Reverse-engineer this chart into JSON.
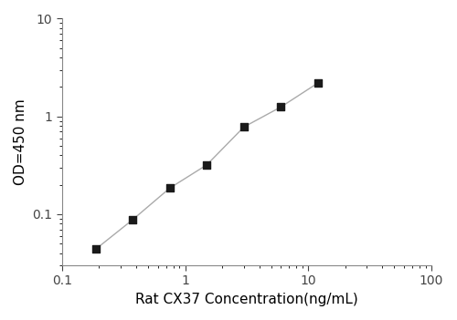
{
  "x": [
    0.188,
    0.375,
    0.75,
    1.5,
    3.0,
    6.0,
    12.0
  ],
  "y": [
    0.044,
    0.088,
    0.185,
    0.32,
    0.78,
    1.25,
    2.2
  ],
  "xlim": [
    0.1,
    100
  ],
  "ylim": [
    0.03,
    10
  ],
  "xlabel": "Rat CX37 Concentration(ng/mL)",
  "ylabel": "OD=450 nm",
  "xtick_labels": [
    "0.1",
    "1",
    "10",
    "100"
  ],
  "xtick_values": [
    0.1,
    1,
    10,
    100
  ],
  "ytick_labels": [
    "0.1",
    "1",
    "10"
  ],
  "ytick_values": [
    0.1,
    1,
    10
  ],
  "line_color": "#aaaaaa",
  "marker_color": "#1a1a1a",
  "marker_size": 6,
  "line_width": 1.0,
  "bg_color": "#ffffff",
  "axis_fontsize": 11,
  "tick_fontsize": 10
}
